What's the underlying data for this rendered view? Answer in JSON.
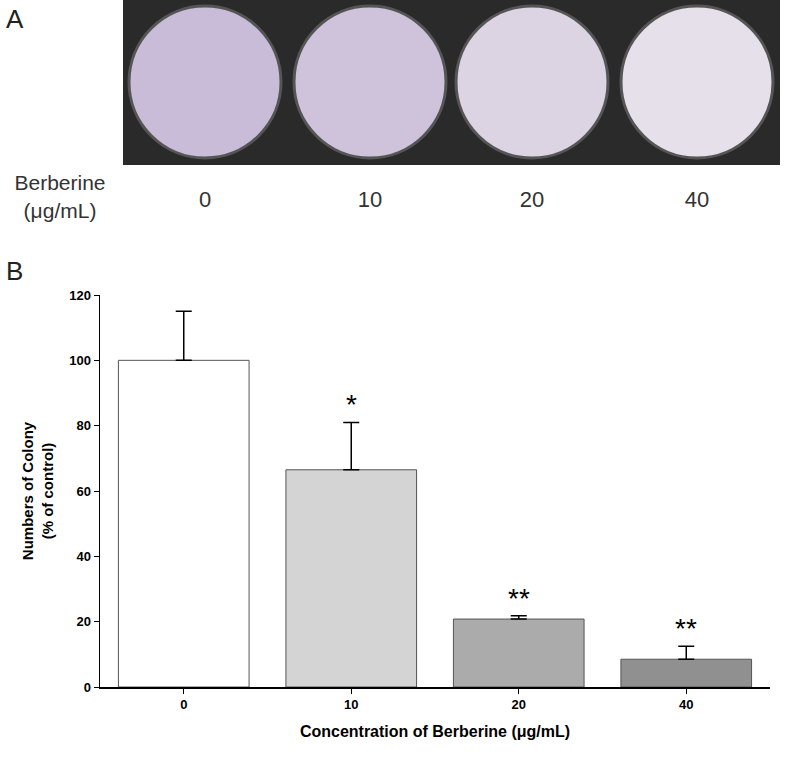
{
  "panel_labels": [
    "A",
    "B"
  ],
  "plates": {
    "row_label": [
      "Berberine",
      "(μg/mL)"
    ],
    "labels": [
      "0",
      "10",
      "20",
      "40"
    ]
  },
  "chart_data": {
    "type": "bar",
    "xlabel": "Concentration of Berberine (μg/mL)",
    "ylabel": "Numbers of Colony\n(% of control)",
    "categories": [
      "0",
      "10",
      "20",
      "40"
    ],
    "values": [
      100,
      66.5,
      20.8,
      8.5
    ],
    "errors": [
      15,
      14.5,
      1,
      4
    ],
    "colors": [
      "#ffffff",
      "#d4d4d4",
      "#ababab",
      "#909090"
    ],
    "annotations": [
      {
        "category": "10",
        "text": "*"
      },
      {
        "category": "20",
        "text": "**"
      },
      {
        "category": "40",
        "text": "**"
      }
    ],
    "ylim": [
      0,
      120
    ],
    "yticks": [
      0,
      20,
      40,
      60,
      80,
      100,
      120
    ],
    "grid": false
  }
}
